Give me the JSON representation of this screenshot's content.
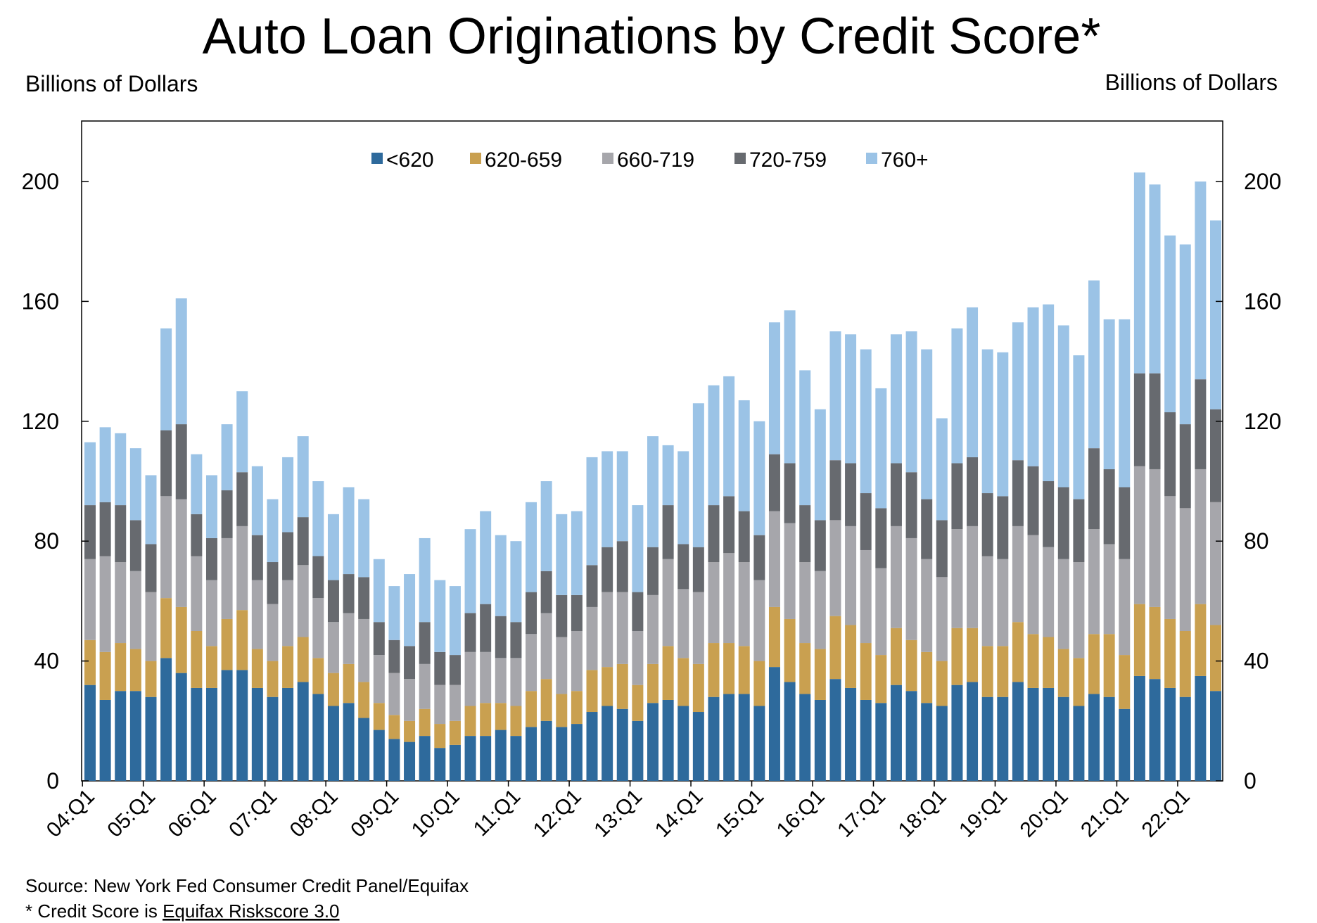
{
  "chart_data": {
    "type": "bar",
    "stacked": true,
    "title": "Auto Loan Originations by Credit Score*",
    "ylabel_left": "Billions of Dollars",
    "ylabel_right": "Billions of Dollars",
    "ylim": [
      0,
      220
    ],
    "yticks": [
      0,
      40,
      80,
      120,
      160,
      200
    ],
    "legend_position": "top-center",
    "grid": false,
    "x_tick_labels": [
      "04:Q1",
      "05:Q1",
      "06:Q1",
      "07:Q1",
      "08:Q1",
      "09:Q1",
      "10:Q1",
      "11:Q1",
      "12:Q1",
      "13:Q1",
      "14:Q1",
      "15:Q1",
      "16:Q1",
      "17:Q1",
      "18:Q1",
      "19:Q1",
      "20:Q1",
      "21:Q1",
      "22:Q1"
    ],
    "categories": [
      "04:Q1",
      "04:Q2",
      "04:Q3",
      "04:Q4",
      "05:Q1",
      "05:Q2",
      "05:Q3",
      "05:Q4",
      "06:Q1",
      "06:Q2",
      "06:Q3",
      "06:Q4",
      "07:Q1",
      "07:Q2",
      "07:Q3",
      "07:Q4",
      "08:Q1",
      "08:Q2",
      "08:Q3",
      "08:Q4",
      "09:Q1",
      "09:Q2",
      "09:Q3",
      "09:Q4",
      "10:Q1",
      "10:Q2",
      "10:Q3",
      "10:Q4",
      "11:Q1",
      "11:Q2",
      "11:Q3",
      "11:Q4",
      "12:Q1",
      "12:Q2",
      "12:Q3",
      "12:Q4",
      "13:Q1",
      "13:Q2",
      "13:Q3",
      "13:Q4",
      "14:Q1",
      "14:Q2",
      "14:Q3",
      "14:Q4",
      "15:Q1",
      "15:Q2",
      "15:Q3",
      "15:Q4",
      "16:Q1",
      "16:Q2",
      "16:Q3",
      "16:Q4",
      "17:Q1",
      "17:Q2",
      "17:Q3",
      "17:Q4",
      "18:Q1",
      "18:Q2",
      "18:Q3",
      "18:Q4",
      "19:Q1",
      "19:Q2",
      "19:Q3",
      "19:Q4",
      "20:Q1",
      "20:Q2",
      "20:Q3",
      "20:Q4",
      "21:Q1",
      "21:Q2",
      "21:Q3",
      "21:Q4",
      "22:Q1",
      "22:Q2",
      "22:Q3"
    ],
    "series": [
      {
        "name": "<620",
        "color": "#2e6a9c",
        "values": [
          32,
          27,
          30,
          30,
          28,
          41,
          36,
          31,
          31,
          37,
          37,
          31,
          28,
          31,
          33,
          29,
          25,
          26,
          21,
          17,
          14,
          13,
          15,
          11,
          12,
          15,
          15,
          17,
          15,
          18,
          20,
          18,
          19,
          23,
          25,
          24,
          20,
          26,
          27,
          25,
          23,
          28,
          29,
          29,
          25,
          38,
          33,
          29,
          27,
          34,
          31,
          27,
          26,
          32,
          30,
          26,
          25,
          32,
          33,
          28,
          28,
          33,
          31,
          31,
          28,
          25,
          29,
          28,
          24,
          35,
          34,
          31,
          28,
          35,
          30
        ]
      },
      {
        "name": "620-659",
        "color": "#c9a050",
        "values": [
          15,
          16,
          16,
          14,
          12,
          20,
          22,
          19,
          14,
          17,
          20,
          13,
          12,
          14,
          15,
          12,
          11,
          13,
          12,
          9,
          8,
          7,
          9,
          8,
          8,
          10,
          11,
          9,
          10,
          12,
          14,
          11,
          11,
          14,
          13,
          15,
          12,
          13,
          18,
          16,
          16,
          18,
          17,
          16,
          15,
          20,
          21,
          17,
          17,
          21,
          21,
          19,
          16,
          19,
          17,
          17,
          15,
          19,
          18,
          17,
          17,
          20,
          18,
          17,
          16,
          16,
          20,
          21,
          18,
          24,
          24,
          23,
          22,
          24,
          22
        ]
      },
      {
        "name": "660-719",
        "color": "#a6a6ab",
        "values": [
          27,
          32,
          27,
          26,
          23,
          34,
          36,
          25,
          22,
          27,
          28,
          23,
          19,
          22,
          24,
          20,
          17,
          17,
          21,
          16,
          14,
          14,
          15,
          13,
          12,
          18,
          17,
          15,
          16,
          19,
          22,
          19,
          20,
          21,
          25,
          24,
          18,
          23,
          29,
          23,
          24,
          27,
          30,
          28,
          27,
          32,
          32,
          27,
          26,
          32,
          33,
          31,
          29,
          34,
          34,
          31,
          28,
          33,
          34,
          30,
          29,
          32,
          33,
          30,
          30,
          32,
          35,
          30,
          32,
          46,
          46,
          41,
          41,
          45,
          41
        ]
      },
      {
        "name": "720-759",
        "color": "#676a6f",
        "values": [
          18,
          18,
          19,
          17,
          16,
          22,
          25,
          14,
          14,
          16,
          18,
          15,
          14,
          16,
          16,
          14,
          14,
          13,
          14,
          11,
          11,
          11,
          14,
          11,
          10,
          13,
          16,
          14,
          12,
          14,
          14,
          14,
          12,
          14,
          15,
          17,
          13,
          16,
          18,
          15,
          15,
          19,
          19,
          17,
          15,
          19,
          20,
          19,
          17,
          20,
          21,
          19,
          20,
          21,
          22,
          20,
          19,
          22,
          23,
          21,
          21,
          22,
          23,
          22,
          24,
          21,
          27,
          25,
          24,
          31,
          32,
          28,
          28,
          30,
          31
        ]
      },
      {
        "name": "760+",
        "color": "#9bc3e6",
        "values": [
          21,
          25,
          24,
          24,
          23,
          34,
          42,
          20,
          21,
          22,
          27,
          23,
          21,
          25,
          27,
          25,
          22,
          29,
          26,
          21,
          18,
          24,
          28,
          24,
          23,
          28,
          31,
          27,
          27,
          30,
          30,
          27,
          28,
          36,
          32,
          30,
          29,
          37,
          20,
          31,
          48,
          40,
          40,
          37,
          38,
          44,
          51,
          45,
          37,
          43,
          43,
          48,
          40,
          43,
          47,
          50,
          34,
          45,
          50,
          48,
          48,
          46,
          53,
          59,
          54,
          48,
          56,
          50,
          56,
          67,
          63,
          59,
          60,
          66,
          63
        ]
      }
    ]
  },
  "notes": {
    "source": "Source: New York Fed Consumer Credit Panel/Equifax",
    "footnote_prefix": "* Credit Score is ",
    "footnote_link": "Equifax Riskscore 3.0"
  }
}
